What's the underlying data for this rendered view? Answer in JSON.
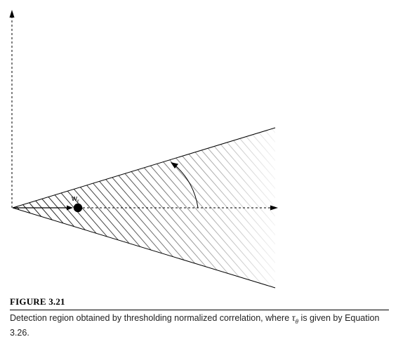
{
  "figure": {
    "label": "FIGURE 3.21",
    "caption_before": "Detection region obtained by thresholding normalized correlation, where ",
    "tau_symbol": "τ",
    "tau_subscript": "θ",
    "caption_after": " is given by Equation 3.26."
  },
  "diagram": {
    "vector_label": "w",
    "vector_label_subscript": "r",
    "colors": {
      "stroke": "#000000",
      "hatch_dark": "#111111",
      "hatch_fade": "#ffffff"
    }
  }
}
